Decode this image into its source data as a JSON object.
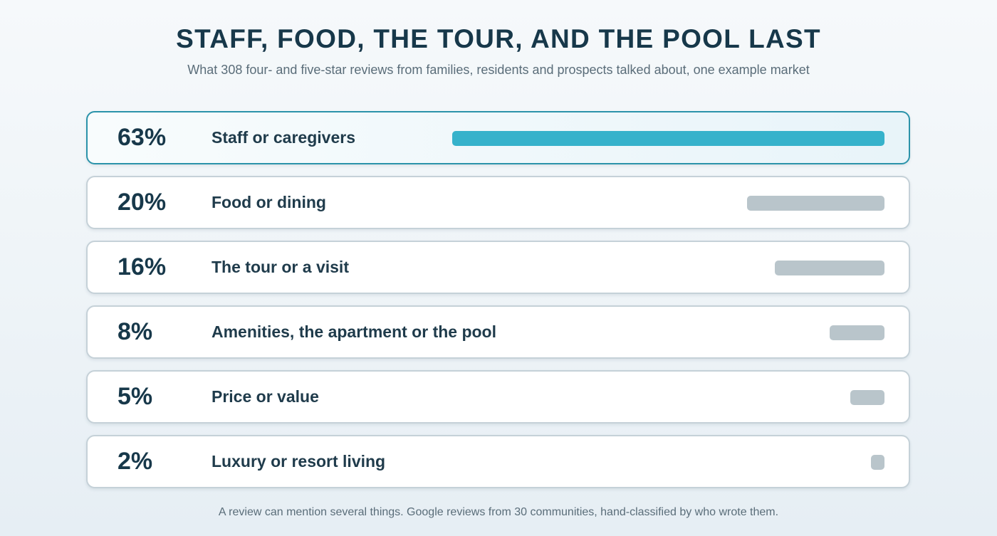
{
  "header": {
    "title": "STAFF, FOOD, THE TOUR, AND THE POOL LAST",
    "subtitle": "What 308 four- and five-star reviews from families, residents and prospects talked about, one example market"
  },
  "footer": {
    "note": "A review can mention several things. Google reviews from 30 communities, hand-classified by who wrote them."
  },
  "colors": {
    "highlight_bar": "#36b2cb",
    "default_bar": "#b9c5cb",
    "highlight_border": "#2b93aa"
  },
  "chart_data": {
    "type": "bar",
    "orientation": "horizontal",
    "title": "STAFF, FOOD, THE TOUR, AND THE POOL LAST",
    "subtitle": "What 308 four- and five-star reviews from families, residents and prospects talked about, one example market",
    "categories": [
      "Staff or caregivers",
      "Food or dining",
      "The tour or a visit",
      "Amenities, the apartment or the pool",
      "Price or value",
      "Luxury or resort living"
    ],
    "values": [
      63,
      20,
      16,
      8,
      5,
      2
    ],
    "value_labels": [
      "63%",
      "20%",
      "16%",
      "8%",
      "5%",
      "2%"
    ],
    "unit": "%",
    "xlim": [
      0,
      63
    ],
    "highlighted_index": 0,
    "grid": false,
    "legend": "none"
  }
}
